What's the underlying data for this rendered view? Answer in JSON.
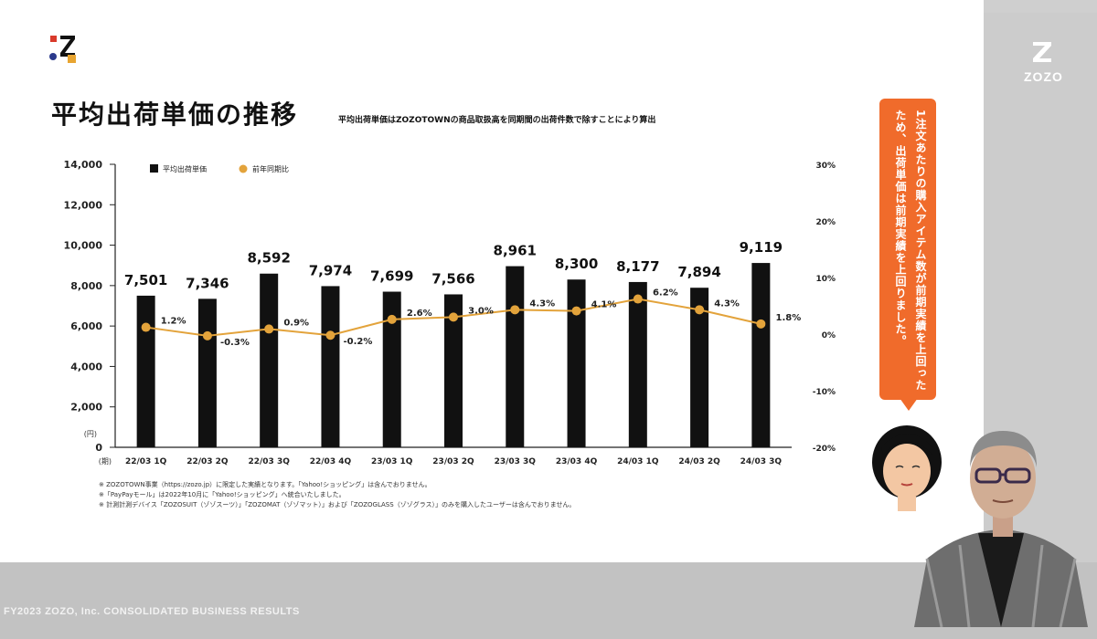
{
  "slide": {
    "title": "平均出荷単価の推移",
    "subtitle": "平均出荷単価はZOZOTOWNの商品取扱高を同期間の出荷件数で除すことにより算出",
    "footer": "FY2023 ZOZO, Inc. CONSOLIDATED BUSINESS RESULTS",
    "brand": "ZOZO",
    "notes": [
      "※ ZOZOTOWN事業（https://zozo.jp）に限定した実績となります。「Yahoo!ショッピング」は含んでおりません。",
      "※「PayPayモール」は2022年10月に「Yahoo!ショッピング」へ統合いたしました。",
      "※ 計測計測デバイス「ZOZOSUIT（ゾゾスーツ）」「ZOZOMAT（ゾゾマット）」および「ZOZOGLASS（ゾゾグラス）」のみを購入したユーザーは含んでおりません。"
    ],
    "callout": "1注文あたりの購入アイテム数が前期実績を上回ったため、出荷単価は前期実績を上回りました。"
  },
  "chart_data": {
    "type": "bar",
    "categories": [
      "22/03 1Q",
      "22/03 2Q",
      "22/03 3Q",
      "22/03 4Q",
      "23/03 1Q",
      "23/03 2Q",
      "23/03 3Q",
      "23/03 4Q",
      "24/03 1Q",
      "24/03 2Q",
      "24/03 3Q"
    ],
    "series": [
      {
        "name": "平均出荷単価",
        "type": "bar",
        "axis": "left",
        "color": "#111111",
        "values": [
          7501,
          7346,
          8592,
          7974,
          7699,
          7566,
          8961,
          8300,
          8177,
          7894,
          9119
        ],
        "labels": [
          "7,501",
          "7,346",
          "8,592",
          "7,974",
          "7,699",
          "7,566",
          "8,961",
          "8,300",
          "8,177",
          "7,894",
          "9,119"
        ]
      },
      {
        "name": "前年同期比",
        "type": "line",
        "axis": "right",
        "color": "#e3a33b",
        "values": [
          1.2,
          -0.3,
          0.9,
          -0.2,
          2.6,
          3.0,
          4.3,
          4.1,
          6.2,
          4.3,
          1.8
        ],
        "labels": [
          "1.2%",
          "-0.3%",
          "0.9%",
          "-0.2%",
          "2.6%",
          "3.0%",
          "4.3%",
          "4.1%",
          "6.2%",
          "4.3%",
          "1.8%"
        ]
      }
    ],
    "ylim": [
      0,
      14000
    ],
    "y_ticks": [
      "0",
      "2,000",
      "4,000",
      "6,000",
      "8,000",
      "10,000",
      "12,000",
      "14,000"
    ],
    "y_unit": "(円)",
    "x_unit": "(期)",
    "y2lim": [
      -20,
      30
    ],
    "y2_ticks": [
      "-20%",
      "-10%",
      "0%",
      "10%",
      "20%",
      "30%"
    ],
    "legend_position": "top-left",
    "grid": false
  }
}
